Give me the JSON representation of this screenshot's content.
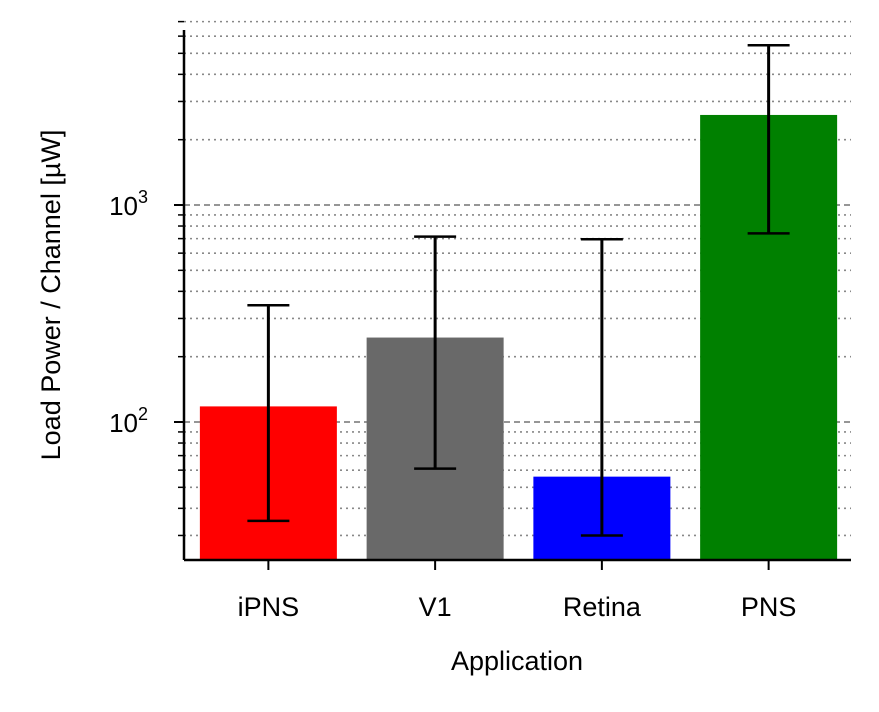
{
  "chart_data": {
    "type": "bar",
    "categories": [
      "iPNS",
      "V1",
      "Retina",
      "PNS"
    ],
    "values": [
      118,
      245,
      56,
      2600
    ],
    "error_low": [
      35,
      61,
      30,
      740
    ],
    "error_high": [
      345,
      715,
      695,
      5450
    ],
    "colors": [
      "#ff0000",
      "#696969",
      "#0000ff",
      "#008000"
    ],
    "xlabel": "Application",
    "ylabel": "Load Power / Channel [µW]",
    "yscale": "log",
    "ylim": [
      22,
      7000
    ],
    "yticks": [
      {
        "base": "10",
        "exp": "2",
        "value": 100
      },
      {
        "base": "10",
        "exp": "3",
        "value": 1000
      }
    ],
    "grid": "major dashed, minor dotted"
  }
}
